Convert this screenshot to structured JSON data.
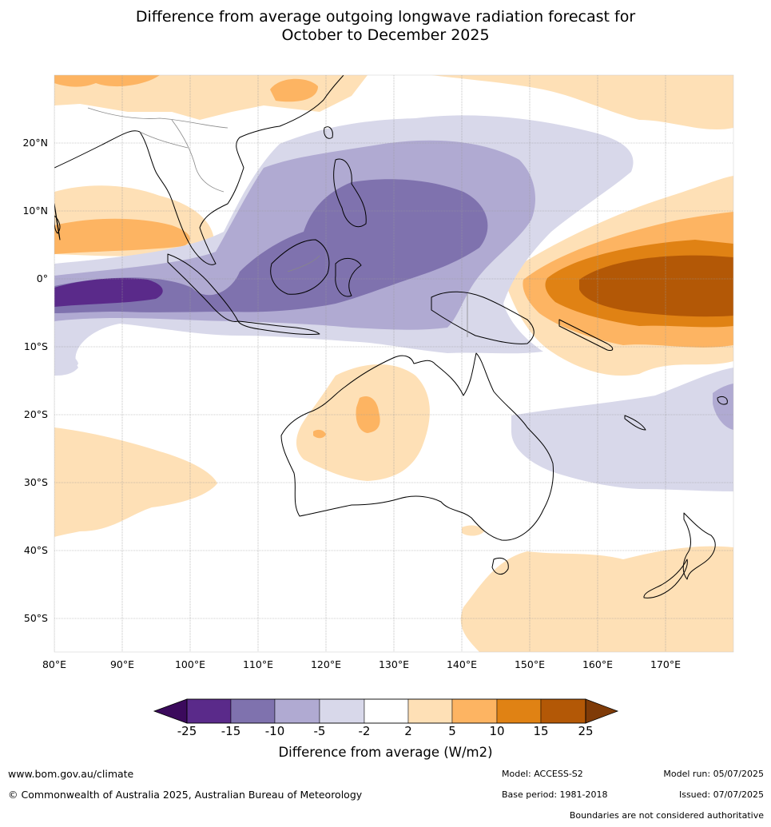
{
  "title": {
    "line1": "Difference from average outgoing longwave radiation forecast for",
    "line2": "October to December 2025"
  },
  "map": {
    "lat_labels": [
      "20°N",
      "10°N",
      "0°",
      "10°S",
      "20°S",
      "30°S",
      "40°S",
      "50°S"
    ],
    "lon_labels": [
      "80°E",
      "90°E",
      "100°E",
      "110°E",
      "120°E",
      "130°E",
      "140°E",
      "150°E",
      "160°E",
      "170°E"
    ],
    "colors": {
      "land_outline": "#000000",
      "border": "#888888",
      "grid": "#999999"
    }
  },
  "colorbar": {
    "ticks": [
      "-25",
      "-15",
      "-10",
      "-5",
      "-2",
      "2",
      "5",
      "10",
      "15",
      "25"
    ],
    "colors": [
      "#3b0a5c",
      "#5a2a8a",
      "#7f72ae",
      "#b0aad2",
      "#d8d8ea",
      "#ffffff",
      "#fee0b6",
      "#fdb462",
      "#e08214",
      "#b35806",
      "#7f3b08"
    ],
    "label": "Difference from average (W/m2)"
  },
  "footer": {
    "website": "www.bom.gov.au/climate",
    "copyright": "© Commonwealth of Australia 2025, Australian Bureau of Meteorology",
    "model": "Model: ACCESS-S2",
    "model_run": "Model run: 05/07/2025",
    "base_period": "Base period: 1981-2018",
    "issued": "Issued: 07/07/2025",
    "disclaimer": "Boundaries are not considered authoritative"
  }
}
